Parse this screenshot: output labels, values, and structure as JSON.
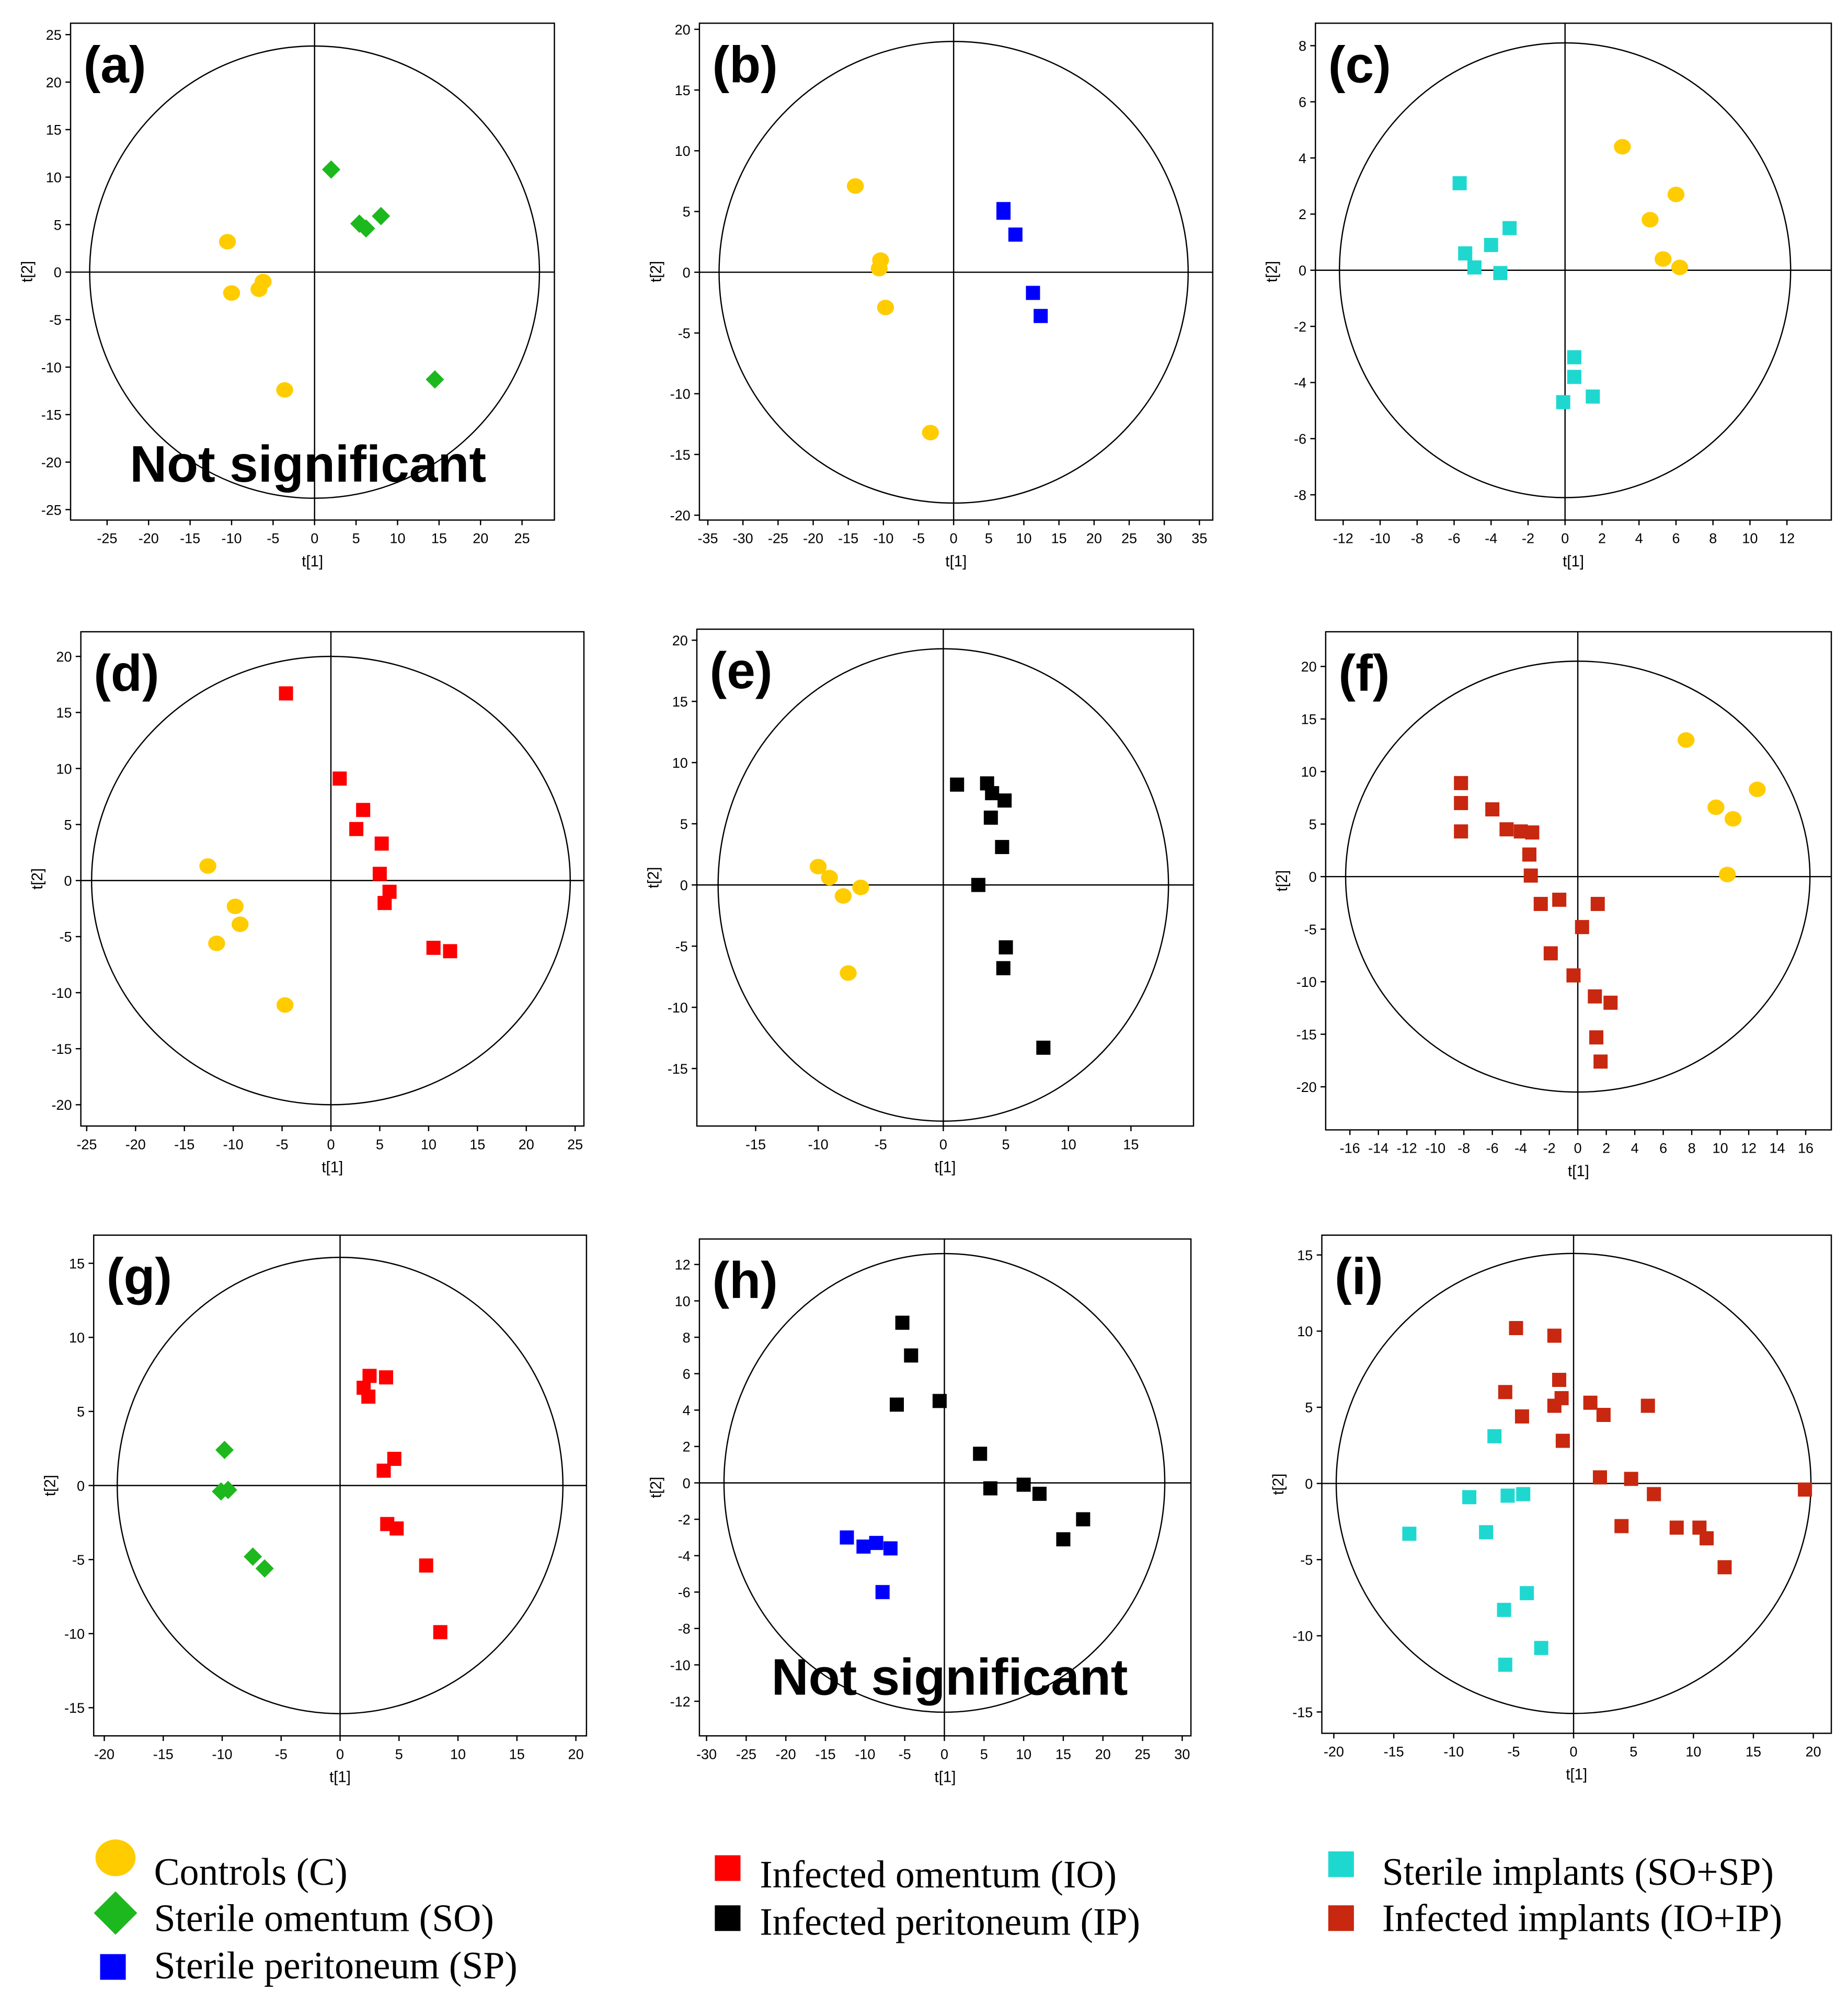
{
  "legend": [
    {
      "key": "C",
      "label": "Controls (C)",
      "color": "#FFCC00",
      "shape": "circle"
    },
    {
      "key": "SO",
      "label": "Sterile omentum (SO)",
      "color": "#1DB81D",
      "shape": "diamond"
    },
    {
      "key": "SP",
      "label": "Sterile peritoneum (SP)",
      "color": "#0000FF",
      "shape": "square"
    },
    {
      "key": "IO",
      "label": "Infected omentum (IO)",
      "color": "#FF0000",
      "shape": "square"
    },
    {
      "key": "IP",
      "label": "Infected peritoneum (IP)",
      "color": "#000000",
      "shape": "square"
    },
    {
      "key": "SI",
      "label": "Sterile implants (SO+SP)",
      "color": "#1ED8D0",
      "shape": "square"
    },
    {
      "key": "II",
      "label": "Infected implants (IO+IP)",
      "color": "#C8280F",
      "shape": "square"
    }
  ],
  "chart_data": [
    {
      "type": "scatter",
      "label": "(a)",
      "xlabel": "t[1]",
      "ylabel": "t[2]",
      "xlim": [
        -29.4,
        28.9
      ],
      "ylim": [
        -26.1,
        26.2
      ],
      "xticks": [
        -25,
        -20,
        -15,
        -10,
        -5,
        0,
        5,
        10,
        15,
        20,
        25
      ],
      "yticks": [
        -25,
        -20,
        -15,
        -10,
        -5,
        0,
        5,
        10,
        15,
        20,
        25
      ],
      "ellipse_radii": [
        27.1,
        23.8
      ],
      "annotation": "Not significant",
      "series": [
        {
          "key": "C",
          "points": [
            [
              -10.5,
              3.2
            ],
            [
              -10,
              -2.2
            ],
            [
              -6.2,
              -1
            ],
            [
              -6.7,
              -1.8
            ],
            [
              -3.6,
              -12.4
            ]
          ]
        },
        {
          "key": "SO",
          "points": [
            [
              2,
              10.8
            ],
            [
              5.4,
              5.1
            ],
            [
              6.2,
              4.6
            ],
            [
              8,
              5.9
            ],
            [
              14.5,
              -11.3
            ]
          ]
        }
      ]
    },
    {
      "type": "scatter",
      "label": "(b)",
      "xlabel": "t[1]",
      "ylabel": "t[2]",
      "xlim": [
        -36.2,
        36.9
      ],
      "ylim": [
        -20.4,
        20.5
      ],
      "xticks": [
        -35,
        -30,
        -25,
        -20,
        -15,
        -10,
        -5,
        0,
        5,
        10,
        15,
        20,
        25,
        30,
        35
      ],
      "yticks": [
        -20,
        -15,
        -10,
        -5,
        0,
        5,
        10,
        15,
        20
      ],
      "ellipse_radii": [
        33.4,
        19
      ],
      "annotation": "",
      "series": [
        {
          "key": "C",
          "points": [
            [
              -14,
              7.1
            ],
            [
              -10.4,
              1
            ],
            [
              -10.6,
              0.3
            ],
            [
              -9.7,
              -2.9
            ],
            [
              -3.3,
              -13.2
            ]
          ]
        },
        {
          "key": "SP",
          "points": [
            [
              7.1,
              5.2
            ],
            [
              7.1,
              4.9
            ],
            [
              8.8,
              3.1
            ],
            [
              11.3,
              -1.7
            ],
            [
              12.4,
              -3.6
            ]
          ]
        }
      ]
    },
    {
      "type": "scatter",
      "label": "(c)",
      "xlabel": "t[1]",
      "ylabel": "t[2]",
      "xlim": [
        -13.5,
        14.4
      ],
      "ylim": [
        -8.9,
        8.8
      ],
      "xticks": [
        -12,
        -10,
        -8,
        -6,
        -4,
        -2,
        0,
        2,
        4,
        6,
        8,
        10,
        12
      ],
      "yticks": [
        -8,
        -6,
        -4,
        -2,
        0,
        2,
        4,
        6,
        8
      ],
      "ellipse_radii": [
        12.2,
        8.1
      ],
      "annotation": "",
      "series": [
        {
          "key": "C",
          "points": [
            [
              3.1,
              4.4
            ],
            [
              6,
              2.7
            ],
            [
              4.6,
              1.8
            ],
            [
              5.3,
              0.4
            ],
            [
              6.2,
              0.1
            ]
          ]
        },
        {
          "key": "SI",
          "points": [
            [
              -5.7,
              3.1
            ],
            [
              -5.4,
              0.6
            ],
            [
              -4.9,
              0.1
            ],
            [
              -4,
              0.9
            ],
            [
              -3.5,
              -0.1
            ],
            [
              -3,
              1.5
            ],
            [
              0.5,
              -3.1
            ],
            [
              0.5,
              -3.8
            ],
            [
              -0.1,
              -4.7
            ],
            [
              1.5,
              -4.5
            ]
          ]
        }
      ]
    },
    {
      "type": "scatter",
      "label": "(d)",
      "xlabel": "t[1]",
      "ylabel": "t[2]",
      "xlim": [
        -25.6,
        25.9
      ],
      "ylim": [
        -21.9,
        22.2
      ],
      "xticks": [
        -25,
        -20,
        -15,
        -10,
        -5,
        0,
        5,
        10,
        15,
        20,
        25
      ],
      "yticks": [
        -20,
        -15,
        -10,
        -5,
        0,
        5,
        10,
        15,
        20
      ],
      "ellipse_radii": [
        24.5,
        20
      ],
      "annotation": "",
      "series": [
        {
          "key": "C",
          "points": [
            [
              -12.6,
              1.3
            ],
            [
              -9.8,
              -2.3
            ],
            [
              -9.3,
              -3.9
            ],
            [
              -11.7,
              -5.6
            ],
            [
              -4.7,
              -11.1
            ]
          ]
        },
        {
          "key": "IO",
          "points": [
            [
              -4.6,
              16.7
            ],
            [
              0.9,
              9.1
            ],
            [
              3.3,
              6.3
            ],
            [
              2.6,
              4.6
            ],
            [
              5.2,
              3.3
            ],
            [
              5,
              0.6
            ],
            [
              6,
              -1
            ],
            [
              5.5,
              -2
            ],
            [
              10.5,
              -6
            ],
            [
              12.2,
              -6.3
            ]
          ]
        }
      ]
    },
    {
      "type": "scatter",
      "label": "(e)",
      "xlabel": "t[1]",
      "ylabel": "t[2]",
      "xlim": [
        -19.7,
        20
      ],
      "ylim": [
        -19.7,
        20.9
      ],
      "xticks": [
        -15,
        -10,
        -5,
        0,
        5,
        10,
        15
      ],
      "yticks": [
        -15,
        -10,
        -5,
        0,
        5,
        10,
        15,
        20
      ],
      "ellipse_radii": [
        18,
        19.3
      ],
      "annotation": "",
      "series": [
        {
          "key": "C",
          "points": [
            [
              -10,
              1.5
            ],
            [
              -9.1,
              0.6
            ],
            [
              -8,
              -0.9
            ],
            [
              -6.6,
              -0.2
            ],
            [
              -7.6,
              -7.2
            ]
          ]
        },
        {
          "key": "IP",
          "points": [
            [
              1.1,
              8.2
            ],
            [
              3.5,
              8.3
            ],
            [
              3.9,
              7.5
            ],
            [
              4.9,
              6.9
            ],
            [
              3.8,
              5.5
            ],
            [
              4.7,
              3.1
            ],
            [
              2.8,
              0
            ],
            [
              5,
              -5.1
            ],
            [
              4.8,
              -6.8
            ],
            [
              8,
              -13.3
            ]
          ]
        }
      ]
    },
    {
      "type": "scatter",
      "label": "(f)",
      "xlabel": "t[1]",
      "ylabel": "t[2]",
      "xlim": [
        -17.7,
        17.8
      ],
      "ylim": [
        -24.1,
        23.3
      ],
      "xticks": [
        -16,
        -14,
        -12,
        -10,
        -8,
        -6,
        -4,
        -2,
        0,
        2,
        4,
        6,
        8,
        10,
        12,
        14,
        16
      ],
      "yticks": [
        -20,
        -15,
        -10,
        -5,
        0,
        5,
        10,
        15,
        20
      ],
      "ellipse_radii": [
        16.3,
        20.5
      ],
      "annotation": "",
      "series": [
        {
          "key": "C",
          "points": [
            [
              7.6,
              13
            ],
            [
              9.7,
              6.6
            ],
            [
              10.9,
              5.5
            ],
            [
              12.6,
              8.3
            ],
            [
              10.5,
              0.2
            ]
          ]
        },
        {
          "key": "II",
          "points": [
            [
              -8.2,
              8.9
            ],
            [
              -8.2,
              7
            ],
            [
              -8.2,
              4.3
            ],
            [
              -6,
              6.4
            ],
            [
              -5,
              4.5
            ],
            [
              -4,
              4.3
            ],
            [
              -3.2,
              4.2
            ],
            [
              -3.4,
              2.1
            ],
            [
              -3.3,
              0.1
            ],
            [
              -2.6,
              -2.6
            ],
            [
              -1.3,
              -2.2
            ],
            [
              1.4,
              -2.6
            ],
            [
              0.3,
              -4.8
            ],
            [
              -1.9,
              -7.3
            ],
            [
              -0.3,
              -9.4
            ],
            [
              1.2,
              -11.4
            ],
            [
              2.3,
              -12
            ],
            [
              1.3,
              -15.3
            ],
            [
              1.6,
              -17.6
            ]
          ]
        }
      ]
    },
    {
      "type": "scatter",
      "label": "(g)",
      "xlabel": "t[1]",
      "ylabel": "t[2]",
      "xlim": [
        -20.9,
        20.9
      ],
      "ylim": [
        -16.9,
        16.9
      ],
      "xticks": [
        -20,
        -15,
        -10,
        -5,
        0,
        5,
        10,
        15,
        20
      ],
      "yticks": [
        -15,
        -10,
        -5,
        0,
        5,
        10,
        15
      ],
      "ellipse_radii": [
        18.9,
        15.4
      ],
      "annotation": "",
      "series": [
        {
          "key": "SO",
          "points": [
            [
              -9.8,
              2.4
            ],
            [
              -10.1,
              -0.4
            ],
            [
              -9.5,
              -0.3
            ],
            [
              -7.4,
              -4.8
            ],
            [
              -6.4,
              -5.6
            ]
          ]
        },
        {
          "key": "IO",
          "points": [
            [
              2.5,
              7.4
            ],
            [
              3.9,
              7.3
            ],
            [
              2,
              6.6
            ],
            [
              2.4,
              6
            ],
            [
              4.6,
              1.8
            ],
            [
              3.7,
              1
            ],
            [
              4,
              -2.6
            ],
            [
              4.8,
              -2.9
            ],
            [
              7.3,
              -5.4
            ],
            [
              8.5,
              -9.9
            ]
          ]
        }
      ]
    },
    {
      "type": "scatter",
      "label": "(h)",
      "xlabel": "t[1]",
      "ylabel": "t[2]",
      "xlim": [
        -30.9,
        31.1
      ],
      "ylim": [
        -13.9,
        13.4
      ],
      "xticks": [
        -30,
        -25,
        -20,
        -15,
        -10,
        -5,
        0,
        5,
        10,
        15,
        20,
        25,
        30
      ],
      "yticks": [
        -12,
        -10,
        -8,
        -6,
        -4,
        -2,
        0,
        2,
        4,
        6,
        8,
        10,
        12
      ],
      "ellipse_radii": [
        27.8,
        12.6
      ],
      "annotation": "Not significant",
      "series": [
        {
          "key": "SP",
          "points": [
            [
              -12.3,
              -3
            ],
            [
              -10.2,
              -3.5
            ],
            [
              -8.6,
              -3.3
            ],
            [
              -6.8,
              -3.6
            ],
            [
              -7.8,
              -6
            ]
          ]
        },
        {
          "key": "IP",
          "points": [
            [
              -5.3,
              8.8
            ],
            [
              -4.2,
              7
            ],
            [
              -6,
              4.3
            ],
            [
              -0.6,
              4.5
            ],
            [
              4.5,
              1.6
            ],
            [
              5.8,
              -0.3
            ],
            [
              10,
              -0.1
            ],
            [
              12,
              -0.6
            ],
            [
              15,
              -3.1
            ],
            [
              17.5,
              -2
            ]
          ]
        }
      ]
    },
    {
      "type": "scatter",
      "label": "(i)",
      "xlabel": "t[1]",
      "ylabel": "t[2]",
      "xlim": [
        -21,
        21.5
      ],
      "ylim": [
        -16.4,
        16.3
      ],
      "xticks": [
        -20,
        -15,
        -10,
        -5,
        0,
        5,
        10,
        15,
        20
      ],
      "yticks": [
        -15,
        -10,
        -5,
        0,
        5,
        10,
        15
      ],
      "ellipse_radii": [
        19.8,
        15.1
      ],
      "annotation": "",
      "series": [
        {
          "key": "SI",
          "points": [
            [
              -6.6,
              3.1
            ],
            [
              -8.7,
              -0.9
            ],
            [
              -13.7,
              -3.3
            ],
            [
              -7.3,
              -3.2
            ],
            [
              -5.5,
              -0.8
            ],
            [
              -4.2,
              -0.7
            ],
            [
              -3.9,
              -7.2
            ],
            [
              -5.8,
              -8.3
            ],
            [
              -2.7,
              -10.8
            ],
            [
              -5.7,
              -11.9
            ]
          ]
        },
        {
          "key": "II",
          "points": [
            [
              -4.8,
              10.2
            ],
            [
              -1.6,
              9.7
            ],
            [
              -5.7,
              6
            ],
            [
              -1.2,
              6.8
            ],
            [
              -1,
              5.6
            ],
            [
              -1.6,
              5.1
            ],
            [
              -4.3,
              4.4
            ],
            [
              -0.9,
              2.8
            ],
            [
              1.4,
              5.3
            ],
            [
              2.5,
              4.5
            ],
            [
              6.2,
              5.1
            ],
            [
              2.2,
              0.4
            ],
            [
              4.8,
              0.3
            ],
            [
              6.7,
              -0.7
            ],
            [
              4,
              -2.8
            ],
            [
              8.6,
              -2.9
            ],
            [
              10.5,
              -2.9
            ],
            [
              11.1,
              -3.6
            ],
            [
              12.6,
              -5.5
            ],
            [
              19.3,
              -0.4
            ]
          ]
        }
      ]
    }
  ]
}
